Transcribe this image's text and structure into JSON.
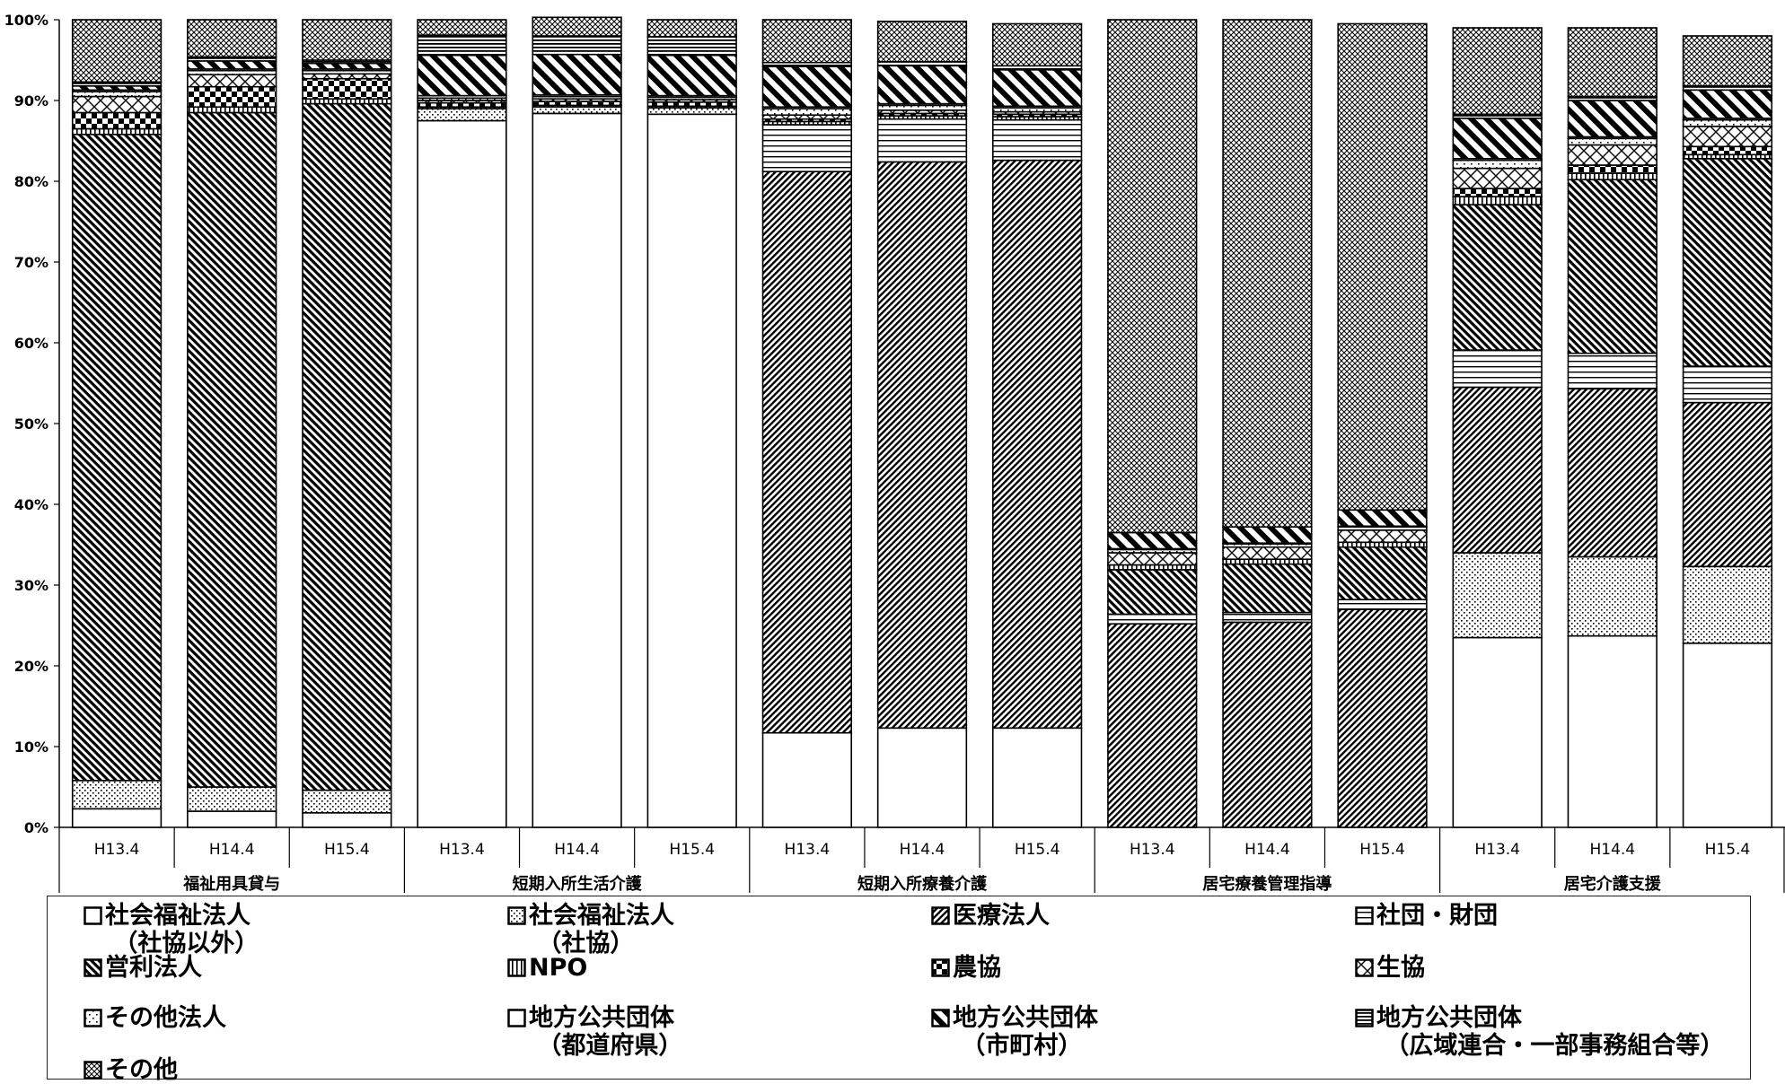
{
  "chart_data": {
    "type": "bar",
    "stacked": true,
    "y_ticks": [
      "0%",
      "10%",
      "20%",
      "30%",
      "40%",
      "50%",
      "60%",
      "70%",
      "80%",
      "90%",
      "100%"
    ],
    "ylim": [
      0,
      100
    ],
    "groups": [
      {
        "name": "福祉用具貸与",
        "categories": [
          "H13.4",
          "H14.4",
          "H15.4"
        ]
      },
      {
        "name": "短期入所生活介護",
        "categories": [
          "H13.4",
          "H14.4",
          "H15.4"
        ]
      },
      {
        "name": "短期入所療養介護",
        "categories": [
          "H13.4",
          "H14.4",
          "H15.4"
        ]
      },
      {
        "name": "居宅療養管理指導",
        "categories": [
          "H13.4",
          "H14.4",
          "H15.4"
        ]
      },
      {
        "name": "居宅介護支援",
        "categories": [
          "H13.4",
          "H14.4",
          "H15.4"
        ]
      }
    ],
    "series": [
      {
        "name": "社会福祉法人（社協以外）",
        "pattern": "white",
        "values": [
          2.3,
          2.0,
          1.8,
          87.5,
          88.4,
          88.3,
          11.7,
          12.3,
          12.3,
          0,
          0,
          0,
          23.5,
          23.7,
          22.8
        ]
      },
      {
        "name": "社会福祉法人（社協）",
        "pattern": "dots",
        "values": [
          3.5,
          3.0,
          2.8,
          1.5,
          0.8,
          0.8,
          0,
          0,
          0,
          0,
          0,
          0,
          10.5,
          9.8,
          9.5
        ]
      },
      {
        "name": "医療法人",
        "pattern": "diag_fine",
        "values": [
          0,
          0,
          0,
          0,
          0,
          0,
          69.5,
          70.1,
          70.3,
          25.2,
          25.4,
          27.0,
          20.5,
          20.8,
          20.3
        ]
      },
      {
        "name": "社団・財団",
        "pattern": "hlines",
        "values": [
          0,
          0,
          0,
          0,
          0,
          0,
          5.8,
          5.3,
          5.0,
          1.2,
          1.2,
          1.2,
          4.6,
          4.4,
          4.5
        ]
      },
      {
        "name": "営利法人",
        "pattern": "diag_dense",
        "values": [
          80.0,
          83.5,
          85.0,
          0,
          0,
          0,
          0,
          0,
          0,
          5.5,
          6.0,
          6.5,
          18.0,
          21.5,
          25.7
        ]
      },
      {
        "name": "NPO",
        "pattern": "vlines",
        "values": [
          0.7,
          0.7,
          0.6,
          0.2,
          0.2,
          0.2,
          0.4,
          0.4,
          0.4,
          0.6,
          0.6,
          0.6,
          1.0,
          0.8,
          0.5
        ]
      },
      {
        "name": "農協",
        "pattern": "checker",
        "values": [
          2.0,
          2.5,
          2.5,
          0.5,
          0.5,
          0.5,
          0.3,
          0.3,
          0.3,
          0,
          0,
          0,
          1.0,
          1.0,
          1.0
        ]
      },
      {
        "name": "生協",
        "pattern": "cross_wide",
        "values": [
          2.0,
          1.5,
          0.6,
          0.3,
          0.3,
          0.3,
          0.5,
          0.4,
          0.3,
          1.5,
          1.5,
          1.5,
          2.5,
          2.5,
          2.5
        ]
      },
      {
        "name": "その他法人",
        "pattern": "dots_sparse",
        "values": [
          0.6,
          0.5,
          0.4,
          0.3,
          0.3,
          0.3,
          0.8,
          0.6,
          0.5,
          0.4,
          0.4,
          0.4,
          1.0,
          0.8,
          0.8
        ]
      },
      {
        "name": "地方公共団体（都道府県）",
        "pattern": "white",
        "values": [
          0.2,
          0.2,
          0.2,
          0.3,
          0.2,
          0.2,
          0.2,
          0.2,
          0.2,
          0.1,
          0.1,
          0.1,
          0.2,
          0.2,
          0.2
        ]
      },
      {
        "name": "地方公共団体（市町村）",
        "pattern": "diag_wide",
        "values": [
          0.5,
          1.0,
          0.7,
          5.0,
          5.0,
          5.0,
          5.0,
          4.7,
          4.5,
          2.0,
          2.0,
          2.0,
          5.0,
          4.5,
          3.5
        ]
      },
      {
        "name": "地方公共団体（広域連合・一部事務組合等）",
        "pattern": "hlines_dense",
        "values": [
          0.5,
          0.5,
          0.4,
          2.5,
          2.3,
          2.3,
          0.5,
          0.5,
          0.5,
          0,
          0,
          0,
          0.5,
          0.5,
          0.5
        ]
      },
      {
        "name": "その他",
        "pattern": "crosshatch",
        "values": [
          7.7,
          4.6,
          5.0,
          1.9,
          2.3,
          2.1,
          5.3,
          5.0,
          5.2,
          63.5,
          62.8,
          60.2,
          10.7,
          8.5,
          6.2
        ]
      }
    ]
  },
  "legend": [
    {
      "swatch": "white",
      "lines": [
        "社会福祉法人",
        "（社協以外）"
      ]
    },
    {
      "swatch": "dots",
      "lines": [
        "社会福祉法人",
        "（社協）"
      ]
    },
    {
      "swatch": "diag_fine",
      "lines": [
        "医療法人"
      ]
    },
    {
      "swatch": "hlines",
      "lines": [
        "社団・財団"
      ]
    },
    {
      "swatch": "diag_dense",
      "lines": [
        "営利法人"
      ]
    },
    {
      "swatch": "vlines",
      "lines": [
        "NPO"
      ]
    },
    {
      "swatch": "checker",
      "lines": [
        "農協"
      ]
    },
    {
      "swatch": "cross_wide",
      "lines": [
        "生協"
      ]
    },
    {
      "swatch": "dots_sparse",
      "lines": [
        "その他法人"
      ]
    },
    {
      "swatch": "white",
      "lines": [
        "地方公共団体",
        "（都道府県）"
      ]
    },
    {
      "swatch": "diag_wide",
      "lines": [
        "地方公共団体",
        "（市町村）"
      ]
    },
    {
      "swatch": "hlines_dense",
      "lines": [
        "地方公共団体",
        "（広域連合・一部事務組合等）"
      ]
    },
    {
      "swatch": "crosshatch",
      "lines": [
        "その他"
      ]
    }
  ]
}
